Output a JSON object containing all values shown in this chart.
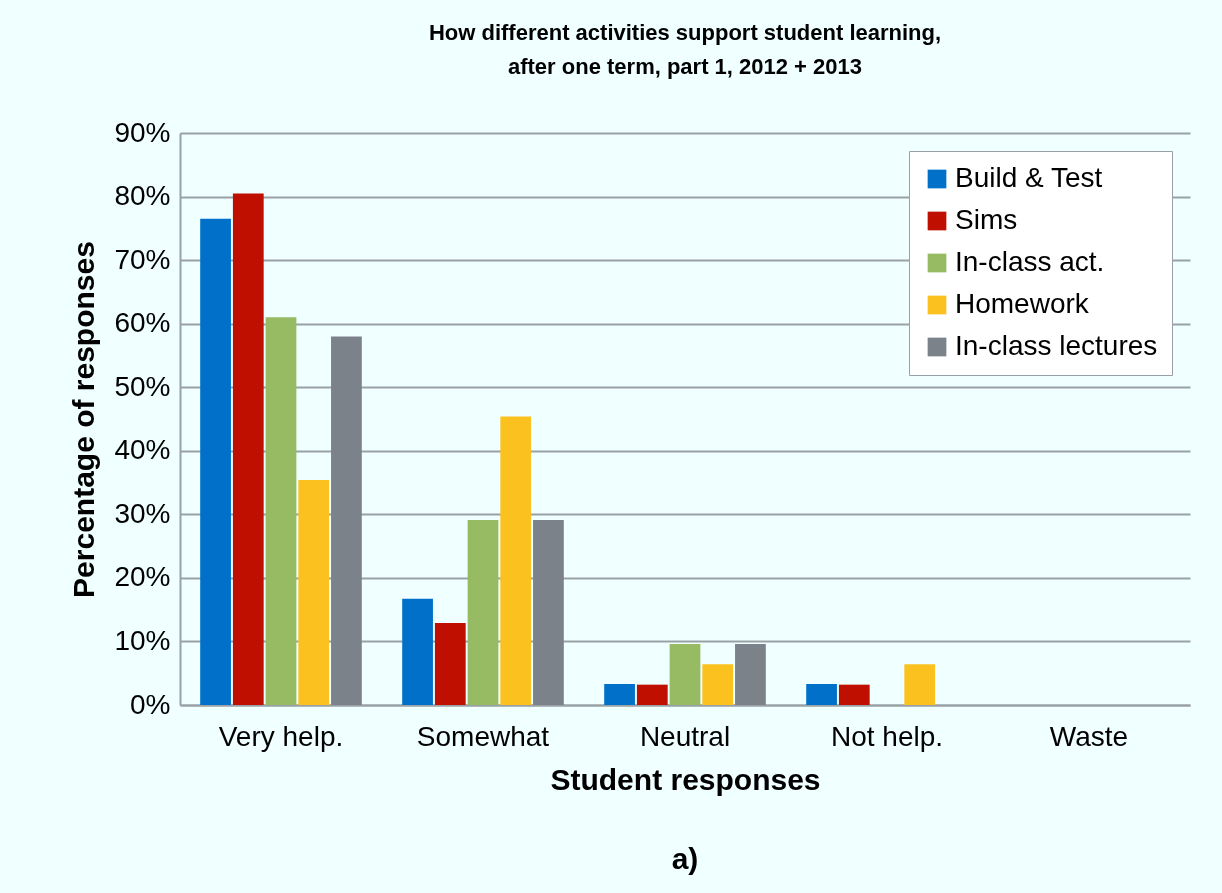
{
  "chart_data": {
    "type": "bar",
    "title": "How different activities support student learning,\nafter one term, part 1, 2012 + 2013",
    "xlabel": "Student responses",
    "ylabel": "Percentage of responses",
    "annotations": [
      "a)"
    ],
    "categories": [
      "Very help.",
      "Somewhat",
      "Neutral",
      "Not help.",
      "Waste"
    ],
    "series": [
      {
        "name": "Build & Test",
        "color": "#0070c9",
        "values": [
          76.5,
          16.7,
          3.3,
          3.3,
          0
        ]
      },
      {
        "name": "Sims",
        "color": "#be0f00",
        "values": [
          80.5,
          12.9,
          3.2,
          3.2,
          0
        ]
      },
      {
        "name": "In-class act.",
        "color": "#97bb62",
        "values": [
          61,
          29.1,
          9.6,
          0,
          0
        ]
      },
      {
        "name": "Homework",
        "color": "#fbc21f",
        "values": [
          35.4,
          45.4,
          6.4,
          6.4,
          0
        ]
      },
      {
        "name": "In-class lectures",
        "color": "#7b828a",
        "values": [
          58,
          29.1,
          9.6,
          0,
          0
        ]
      }
    ],
    "ylim": [
      0,
      90
    ],
    "yticks": [
      {
        "value": 0,
        "label": "0%"
      },
      {
        "value": 10,
        "label": "10%"
      },
      {
        "value": 20,
        "label": "20%"
      },
      {
        "value": 30,
        "label": "30%"
      },
      {
        "value": 40,
        "label": "40%"
      },
      {
        "value": 50,
        "label": "50%"
      },
      {
        "value": 60,
        "label": "60%"
      },
      {
        "value": 70,
        "label": "70%"
      },
      {
        "value": 80,
        "label": "80%"
      },
      {
        "value": 90,
        "label": "90%"
      }
    ],
    "grid": "y",
    "legend": "top right"
  }
}
